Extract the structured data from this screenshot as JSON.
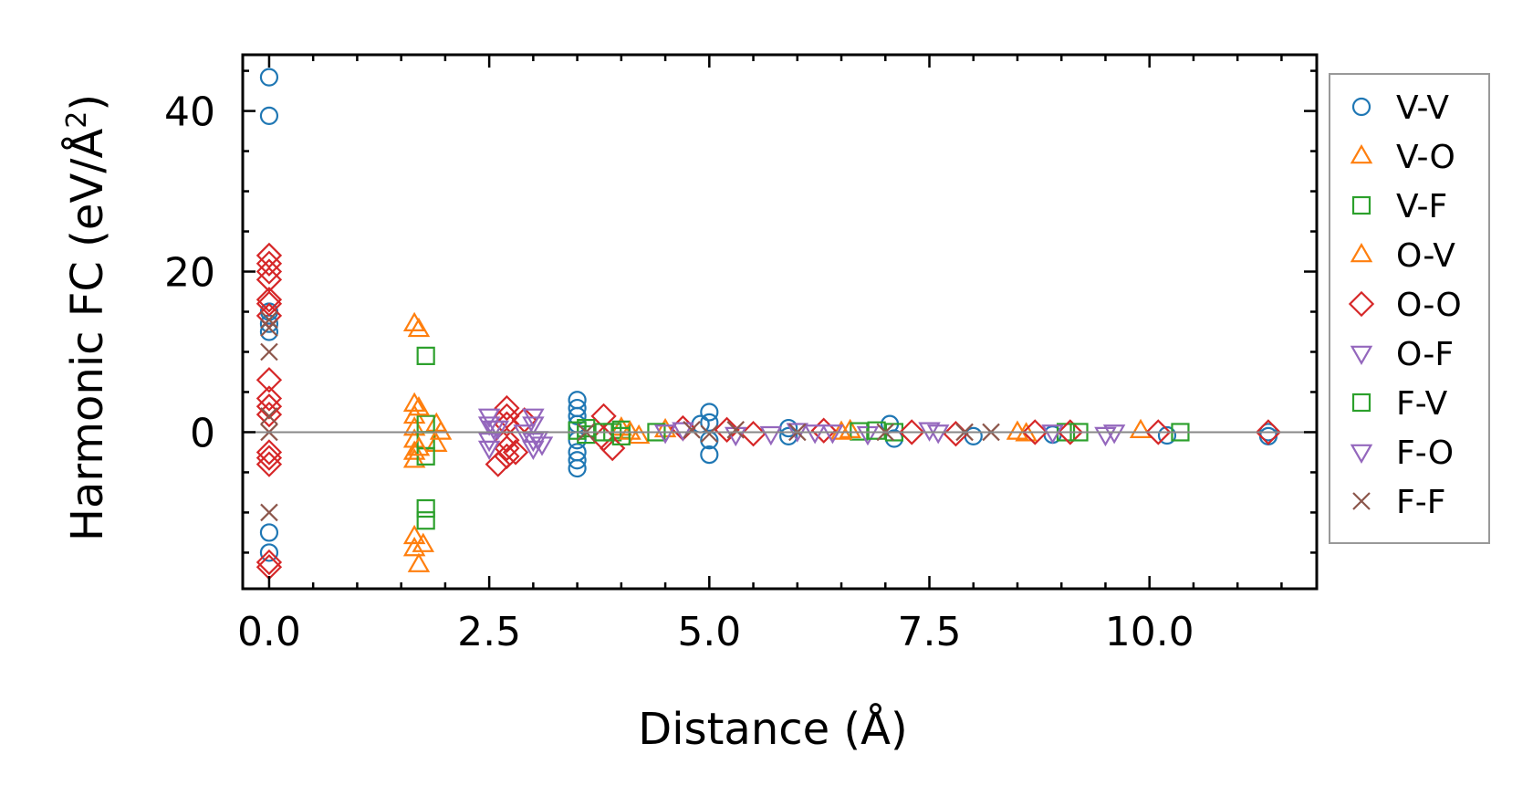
{
  "chart_data": {
    "type": "scatter",
    "title": "",
    "xlabel": "Distance (Å)",
    "ylabel": {
      "prefix": "Harmonic FC (eV/Å",
      "sup": "2",
      "suffix": ")"
    },
    "xlim": [
      -0.3,
      11.9
    ],
    "ylim": [
      -19.5,
      47
    ],
    "xticks": [
      0.0,
      2.5,
      5.0,
      7.5,
      10.0
    ],
    "xtick_labels": [
      "0.0",
      "2.5",
      "5.0",
      "7.5",
      "10.0"
    ],
    "yticks": [
      0,
      20,
      40
    ],
    "ytick_labels": [
      "0",
      "20",
      "40"
    ],
    "hline": 0,
    "legend_position": "outside-right",
    "series": [
      {
        "name": "V-V",
        "marker": "circle",
        "color": "#1f77b4",
        "points": [
          [
            0,
            44.2
          ],
          [
            0,
            39.4
          ],
          [
            0,
            15
          ],
          [
            0,
            13.5
          ],
          [
            0,
            12.5
          ],
          [
            0,
            -12.5
          ],
          [
            0,
            -15
          ],
          [
            3.5,
            4
          ],
          [
            3.5,
            3
          ],
          [
            3.5,
            2
          ],
          [
            3.5,
            1
          ],
          [
            3.5,
            -1
          ],
          [
            3.5,
            -2.5
          ],
          [
            3.5,
            -3.5
          ],
          [
            3.5,
            -4.5
          ],
          [
            4.9,
            1
          ],
          [
            5,
            2.5
          ],
          [
            5,
            1.2
          ],
          [
            5,
            -1
          ],
          [
            5,
            -2.8
          ],
          [
            5.9,
            0.5
          ],
          [
            5.9,
            -0.5
          ],
          [
            7.05,
            1
          ],
          [
            7.1,
            -0.8
          ],
          [
            8,
            -0.5
          ],
          [
            8.9,
            -0.3
          ],
          [
            10.2,
            -0.4
          ],
          [
            11.35,
            0
          ],
          [
            11.35,
            -0.5
          ]
        ]
      },
      {
        "name": "V-O",
        "marker": "triangle-up",
        "color": "#ff7f0e",
        "points": [
          [
            1.65,
            13.5
          ],
          [
            1.65,
            3.5
          ],
          [
            1.65,
            2
          ],
          [
            1.65,
            0.5
          ],
          [
            1.65,
            -1
          ],
          [
            1.65,
            -2.5
          ],
          [
            1.65,
            -3.5
          ],
          [
            1.65,
            -13
          ],
          [
            1.65,
            -14.5
          ],
          [
            1.7,
            -16.5
          ],
          [
            1.9,
            1
          ],
          [
            1.9,
            -1.5
          ],
          [
            4,
            0.5
          ],
          [
            4.2,
            -0.5
          ],
          [
            4.5,
            0.3
          ],
          [
            6.6,
            0.2
          ],
          [
            8.6,
            -0.2
          ],
          [
            9.9,
            0.2
          ]
        ]
      },
      {
        "name": "V-F",
        "marker": "square",
        "color": "#2ca02c",
        "points": [
          [
            1.78,
            9.5
          ],
          [
            1.78,
            1
          ],
          [
            1.78,
            -1
          ],
          [
            1.78,
            -3
          ],
          [
            1.78,
            -9.5
          ],
          [
            1.78,
            -11
          ],
          [
            3.5,
            0.2
          ],
          [
            3.6,
            -0.3
          ],
          [
            3.9,
            0
          ],
          [
            4,
            0.3
          ],
          [
            4.4,
            0
          ],
          [
            6.7,
            0.1
          ],
          [
            7.1,
            0
          ],
          [
            9.05,
            0
          ],
          [
            10.35,
            0
          ]
        ]
      },
      {
        "name": "O-V",
        "marker": "triangle-up",
        "color": "#ff7f0e",
        "points": [
          [
            1.7,
            12.8
          ],
          [
            1.7,
            3
          ],
          [
            1.7,
            -2
          ],
          [
            1.75,
            -14
          ],
          [
            1.95,
            0
          ],
          [
            4.1,
            0
          ],
          [
            6.5,
            0
          ],
          [
            8.5,
            0
          ]
        ]
      },
      {
        "name": "O-O",
        "marker": "diamond",
        "color": "#d62728",
        "points": [
          [
            0,
            22
          ],
          [
            0,
            21
          ],
          [
            0,
            20
          ],
          [
            0,
            19
          ],
          [
            0,
            16.5
          ],
          [
            0,
            16
          ],
          [
            0,
            14.5
          ],
          [
            0,
            6.5
          ],
          [
            0,
            4.2
          ],
          [
            0,
            3.2
          ],
          [
            0,
            2.2
          ],
          [
            0,
            -2.5
          ],
          [
            0,
            -3.2
          ],
          [
            0,
            -4
          ],
          [
            0,
            -16.2
          ],
          [
            0,
            -16.8
          ],
          [
            2.7,
            3
          ],
          [
            2.7,
            2
          ],
          [
            2.7,
            1
          ],
          [
            2.7,
            -1
          ],
          [
            2.7,
            -2
          ],
          [
            2.7,
            -3
          ],
          [
            2.6,
            -4
          ],
          [
            2.8,
            -2.5
          ],
          [
            2.9,
            1.5
          ],
          [
            3.8,
            2
          ],
          [
            3.8,
            -0.8
          ],
          [
            3.9,
            -2
          ],
          [
            4.7,
            0.5
          ],
          [
            5.2,
            0.3
          ],
          [
            5.5,
            -0.2
          ],
          [
            6.3,
            0.2
          ],
          [
            7.3,
            0
          ],
          [
            7.8,
            -0.2
          ],
          [
            8.7,
            0
          ],
          [
            9.1,
            0
          ],
          [
            10.1,
            0
          ],
          [
            11.35,
            0
          ]
        ]
      },
      {
        "name": "O-F",
        "marker": "triangle-down",
        "color": "#9467bd",
        "points": [
          [
            2.5,
            2
          ],
          [
            2.5,
            1
          ],
          [
            2.5,
            -1
          ],
          [
            2.5,
            -2
          ],
          [
            2.55,
            0.5
          ],
          [
            3,
            2
          ],
          [
            3,
            1
          ],
          [
            3,
            -1
          ],
          [
            3,
            -2
          ],
          [
            3.1,
            -1.5
          ],
          [
            4.5,
            0
          ],
          [
            5.3,
            -0.3
          ],
          [
            6,
            0.2
          ],
          [
            6.4,
            0
          ],
          [
            6.8,
            -0.2
          ],
          [
            7.6,
            0
          ],
          [
            8.9,
            0
          ],
          [
            9.5,
            -0.3
          ]
        ]
      },
      {
        "name": "F-V",
        "marker": "square",
        "color": "#2ca02c",
        "points": [
          [
            3.6,
            0.5
          ],
          [
            3.8,
            0
          ],
          [
            4,
            -0.5
          ],
          [
            6.9,
            0.2
          ],
          [
            9.2,
            0
          ]
        ]
      },
      {
        "name": "F-O",
        "marker": "triangle-down",
        "color": "#9467bd",
        "points": [
          [
            2.6,
            0.5
          ],
          [
            2.9,
            0
          ],
          [
            3.05,
            -0.8
          ],
          [
            4.7,
            0.3
          ],
          [
            5.7,
            -0.2
          ],
          [
            6.2,
            0
          ],
          [
            7.5,
            0.3
          ],
          [
            9.6,
            0
          ]
        ]
      },
      {
        "name": "F-F",
        "marker": "x",
        "color": "#8c564b",
        "points": [
          [
            0,
            14
          ],
          [
            0,
            13
          ],
          [
            0,
            10
          ],
          [
            0,
            2
          ],
          [
            0,
            0
          ],
          [
            0,
            -10
          ],
          [
            3.6,
            0
          ],
          [
            4.8,
            0.3
          ],
          [
            5,
            -0.2
          ],
          [
            5.3,
            0.3
          ],
          [
            6,
            0
          ],
          [
            7,
            0
          ],
          [
            7.9,
            0
          ],
          [
            8.2,
            0
          ]
        ]
      }
    ]
  }
}
